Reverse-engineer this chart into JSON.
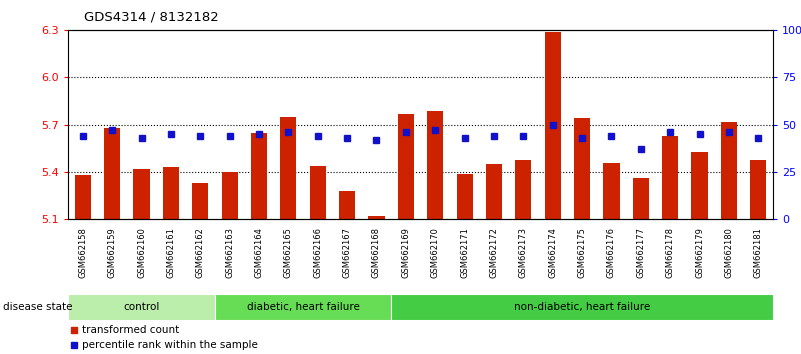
{
  "title": "GDS4314 / 8132182",
  "samples": [
    "GSM662158",
    "GSM662159",
    "GSM662160",
    "GSM662161",
    "GSM662162",
    "GSM662163",
    "GSM662164",
    "GSM662165",
    "GSM662166",
    "GSM662167",
    "GSM662168",
    "GSM662169",
    "GSM662170",
    "GSM662171",
    "GSM662172",
    "GSM662173",
    "GSM662174",
    "GSM662175",
    "GSM662176",
    "GSM662177",
    "GSM662178",
    "GSM662179",
    "GSM662180",
    "GSM662181"
  ],
  "bar_values": [
    5.38,
    5.68,
    5.42,
    5.43,
    5.33,
    5.4,
    5.65,
    5.75,
    5.44,
    5.28,
    5.12,
    5.77,
    5.79,
    5.39,
    5.45,
    5.48,
    6.29,
    5.74,
    5.46,
    5.36,
    5.63,
    5.53,
    5.72,
    5.48
  ],
  "percentile_values": [
    44,
    47,
    43,
    45,
    44,
    44,
    45,
    46,
    44,
    43,
    42,
    46,
    47,
    43,
    44,
    44,
    50,
    43,
    44,
    37,
    46,
    45,
    46,
    43
  ],
  "ylim_left": [
    5.1,
    6.3
  ],
  "ylim_right": [
    0,
    100
  ],
  "yticks_left": [
    5.1,
    5.4,
    5.7,
    6.0,
    6.3
  ],
  "yticks_right": [
    0,
    25,
    50,
    75,
    100
  ],
  "ytick_labels_right": [
    "0",
    "25",
    "50",
    "75",
    "100%"
  ],
  "bar_color": "#cc2200",
  "percentile_color": "#1111cc",
  "groups": [
    {
      "label": "control",
      "start": 0,
      "end": 5,
      "color": "#bbeeaa"
    },
    {
      "label": "diabetic, heart failure",
      "start": 5,
      "end": 11,
      "color": "#66dd55"
    },
    {
      "label": "non-diabetic, heart failure",
      "start": 11,
      "end": 24,
      "color": "#44cc44"
    }
  ],
  "bg_color": "#cccccc",
  "disease_state_label": "disease state",
  "legend_bar_label": "transformed count",
  "legend_pct_label": "percentile rank within the sample"
}
